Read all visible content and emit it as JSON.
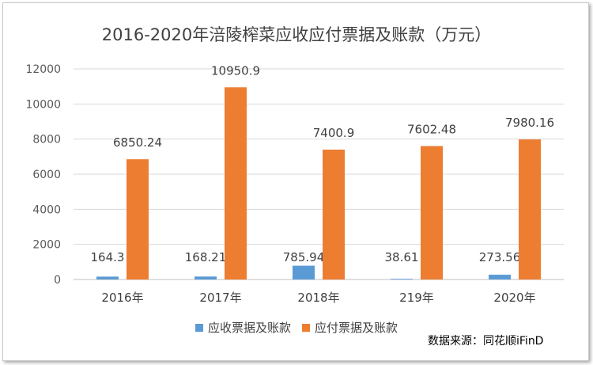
{
  "chart_data": {
    "type": "bar",
    "title": "2016-2020年涪陵榨菜应收应付票据及账款（万元）",
    "categories": [
      "2016年",
      "2017年",
      "2018年",
      "219年",
      "2020年"
    ],
    "series": [
      {
        "name": "应收票据及账款",
        "values": [
          164.3,
          168.21,
          785.94,
          38.61,
          273.56
        ],
        "labels": [
          "164.3",
          "168.21",
          "785.94",
          "38.61",
          "273.56"
        ],
        "color": "#5b9bd5"
      },
      {
        "name": "应付票据及账款",
        "values": [
          6850.24,
          10950.9,
          7400.9,
          7602.48,
          7980.16
        ],
        "labels": [
          "6850.24",
          "10950.9",
          "7400.9",
          "7602.48",
          "7980.16"
        ],
        "color": "#ed7d31"
      }
    ],
    "ylim": [
      0,
      12000
    ],
    "yticks": [
      "0",
      "2000",
      "4000",
      "6000",
      "8000",
      "10000",
      "12000"
    ],
    "grid": true,
    "legend": "bottom"
  },
  "source": "数据来源：同花顺iFinD"
}
